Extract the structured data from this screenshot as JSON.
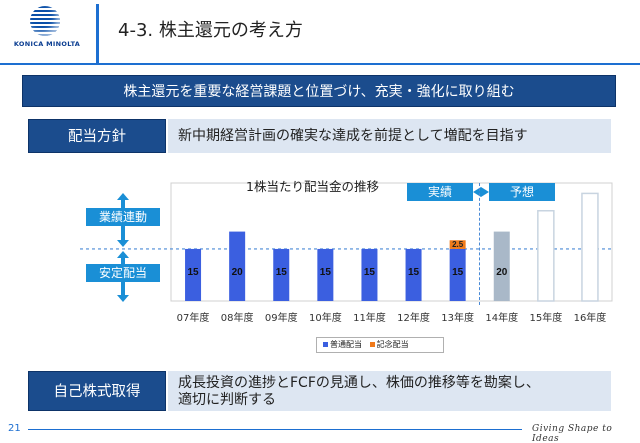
{
  "header": {
    "logo_text": "KONICA MINOLTA",
    "title": "4-3. 株主還元の考え方"
  },
  "policy_banner": "株主還元を重要な経営課題と位置づけ、充実・強化に取り組む",
  "dividend_policy": {
    "label": "配当方針",
    "text": "新中期経営計画の確実な達成を前提として増配を目指す"
  },
  "buyback": {
    "label": "自己株式取得",
    "line1": "成長投資の進捗とFCFの見通し、株価の推移等を勘案し、",
    "line2": "適切に判断する"
  },
  "side_tags": {
    "performance": "業績連動",
    "stable": "安定配当"
  },
  "period_tags": {
    "actual": "実績",
    "forecast": "予想"
  },
  "legend": {
    "regular": "普通配当",
    "commemorative": "記念配当"
  },
  "colors": {
    "brand_blue": "#1b4c8d",
    "accent_blue": "#1a8fd6",
    "regular_bar": "#3b5fe0",
    "commemorative_bar": "#f07a1a",
    "forecast_fill": "#a9b8c8",
    "forecast_outline": "#c8d4e0"
  },
  "chart_data": {
    "type": "bar",
    "title": "1株当たり配当金の推移",
    "categories": [
      "07年度",
      "08年度",
      "09年度",
      "10年度",
      "11年度",
      "12年度",
      "13年度",
      "14年度",
      "15年度",
      "16年度"
    ],
    "series": [
      {
        "name": "普通配当",
        "values": [
          15,
          20,
          15,
          15,
          15,
          15,
          15,
          20,
          null,
          null
        ]
      },
      {
        "name": "記念配当",
        "values": [
          0,
          0,
          0,
          0,
          0,
          0,
          2.5,
          0,
          0,
          0
        ]
      }
    ],
    "data_labels": [
      "15",
      "20",
      "15",
      "15",
      "15",
      "15",
      "15",
      "20",
      "",
      ""
    ],
    "commemorative_label": "2.5",
    "forecast_indicative": [
      null,
      null,
      null,
      null,
      null,
      null,
      null,
      20,
      26,
      31
    ],
    "bar_style": [
      "actual",
      "actual",
      "actual",
      "actual",
      "actual",
      "actual",
      "actual",
      "forecast",
      "outline",
      "outline"
    ],
    "ylim": [
      0,
      34
    ],
    "grid": false,
    "legend_position": "bottom"
  },
  "footer": {
    "page_number": "21",
    "slogan": "Giving Shape to Ideas"
  }
}
